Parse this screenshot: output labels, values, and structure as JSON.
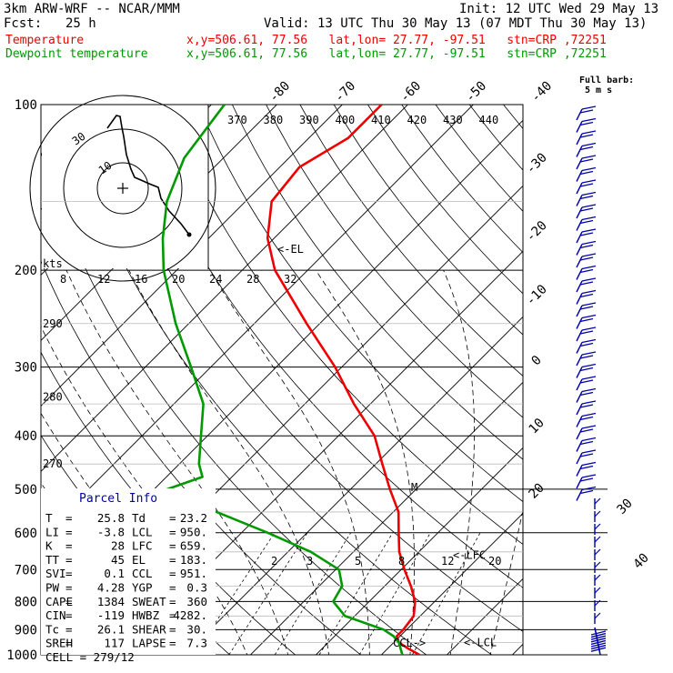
{
  "header": {
    "model": "3km ARW-WRF -- NCAR/MMM",
    "init": "Init: 12 UTC Wed 29 May 13",
    "fcst_label": "Fcst:",
    "fcst_value": "25 h",
    "valid": "Valid: 13 UTC Thu 30 May 13 (07 MDT Thu 30 May 13)",
    "temp_label": "Temperature",
    "temp_info": "x,y=506.61, 77.56   lat,lon= 27.77, -97.51   stn=CRP ,72251",
    "dew_label": "Dewpoint temperature",
    "dew_info": "x,y=506.61, 77.56   lat,lon= 27.77, -97.51   stn=CRP ,72251",
    "barb_title": "Full barb:",
    "barb_unit": "5 m s"
  },
  "colors": {
    "temperature": "#ee0000",
    "dewpoint": "#009900",
    "annotation": "#0000aa",
    "isobar": "#000000",
    "isotherm": "#000000"
  },
  "chart_data": {
    "type": "line",
    "title": "",
    "y_axis": "pressure (hPa), log scale",
    "pressure_ticks": [
      100,
      200,
      300,
      400,
      500,
      600,
      700,
      800,
      900,
      1000
    ],
    "isotherm_labels": [
      -80,
      -70,
      -60,
      -50,
      -40,
      -30,
      -20,
      -10,
      0,
      10,
      20,
      30,
      40
    ],
    "theta_labels": [
      370,
      380,
      390,
      400,
      410,
      420,
      430,
      440
    ],
    "mixing_ratio_labels": [
      2,
      3,
      5,
      8,
      12,
      20
    ],
    "dry_adiabat_labels": [
      {
        "label": "290",
        "p": 250
      },
      {
        "label": "280",
        "p": 340
      },
      {
        "label": "270",
        "p": 450
      }
    ],
    "series": [
      {
        "name": "Temperature",
        "color": "#ee0000",
        "points": [
          {
            "p": 1000,
            "t": 25.8
          },
          {
            "p": 975,
            "t": 23.2
          },
          {
            "p": 950,
            "t": 20.8
          },
          {
            "p": 925,
            "t": 19.5
          },
          {
            "p": 900,
            "t": 19.5
          },
          {
            "p": 850,
            "t": 19.0
          },
          {
            "p": 800,
            "t": 17.0
          },
          {
            "p": 750,
            "t": 14.0
          },
          {
            "p": 700,
            "t": 10.5
          },
          {
            "p": 650,
            "t": 7.0
          },
          {
            "p": 600,
            "t": 4.0
          },
          {
            "p": 550,
            "t": 0.8
          },
          {
            "p": 500,
            "t": -4.0
          },
          {
            "p": 450,
            "t": -9.0
          },
          {
            "p": 400,
            "t": -14.5
          },
          {
            "p": 350,
            "t": -22.5
          },
          {
            "p": 300,
            "t": -31.0
          },
          {
            "p": 250,
            "t": -42.0
          },
          {
            "p": 200,
            "t": -55.0
          },
          {
            "p": 175,
            "t": -61.0
          },
          {
            "p": 150,
            "t": -66.0
          },
          {
            "p": 130,
            "t": -67.0
          },
          {
            "p": 115,
            "t": -64.0
          },
          {
            "p": 100,
            "t": -64.0
          }
        ]
      },
      {
        "name": "Dewpoint temperature",
        "color": "#009900",
        "points": [
          {
            "p": 1000,
            "t": 23.2
          },
          {
            "p": 975,
            "t": 22.0
          },
          {
            "p": 950,
            "t": 20.8
          },
          {
            "p": 925,
            "t": 19.0
          },
          {
            "p": 900,
            "t": 16.5
          },
          {
            "p": 850,
            "t": 8.5
          },
          {
            "p": 800,
            "t": 4.5
          },
          {
            "p": 750,
            "t": 3.5
          },
          {
            "p": 700,
            "t": 0.5
          },
          {
            "p": 650,
            "t": -6.5
          },
          {
            "p": 600,
            "t": -16.0
          },
          {
            "p": 550,
            "t": -27.0
          },
          {
            "p": 500,
            "t": -38.0
          },
          {
            "p": 475,
            "t": -34.5
          },
          {
            "p": 450,
            "t": -37.0
          },
          {
            "p": 400,
            "t": -41.0
          },
          {
            "p": 350,
            "t": -45.5
          },
          {
            "p": 300,
            "t": -53.0
          },
          {
            "p": 250,
            "t": -62.0
          },
          {
            "p": 200,
            "t": -72.0
          },
          {
            "p": 175,
            "t": -77.0
          },
          {
            "p": 150,
            "t": -82.0
          },
          {
            "p": 125,
            "t": -86.0
          },
          {
            "p": 100,
            "t": -88.0
          }
        ]
      }
    ],
    "level_markers": [
      {
        "label": "<-EL",
        "p": 183
      },
      {
        "label": "<-LFC",
        "p": 659
      },
      {
        "label": "<-LCL",
        "p": 950
      },
      {
        "label": "CCL->",
        "p": 951
      }
    ],
    "wind_barb_note": "Full barb: 5 m s-1"
  },
  "hodograph": {
    "units_label": "kts",
    "ring_labels": [
      "10",
      "20",
      "30"
    ],
    "speed_labels": [
      "8",
      "12",
      "16",
      "20",
      "24",
      "28",
      "32"
    ]
  },
  "parcel_info": {
    "title": "Parcel Info",
    "rows": [
      {
        "k1": "T",
        "v1": "25.8",
        "k2": "Td",
        "v2": "23.2"
      },
      {
        "k1": "LI",
        "v1": "-3.8",
        "k2": "LCL",
        "v2": "950."
      },
      {
        "k1": "K",
        "v1": "28",
        "k2": "LFC",
        "v2": "659."
      },
      {
        "k1": "TT",
        "v1": "45",
        "k2": "EL",
        "v2": "183."
      },
      {
        "k1": "SVI",
        "v1": "0.1",
        "k2": "CCL",
        "v2": "951."
      },
      {
        "k1": "PW",
        "v1": "4.28",
        "k2": "YGP",
        "v2": "0.3"
      },
      {
        "k1": "CAPE",
        "v1": "1384",
        "k2": "SWEAT",
        "v2": "360"
      },
      {
        "k1": "CIN",
        "v1": "-119",
        "k2": "HWBZ",
        "v2": "4282."
      },
      {
        "k1": "Tc",
        "v1": "26.1",
        "k2": "SHEAR",
        "v2": "30."
      },
      {
        "k1": "SREH",
        "v1": "117",
        "k2": "LAPSE",
        "v2": "7.3"
      }
    ],
    "cell": "CELL = 279/12"
  }
}
